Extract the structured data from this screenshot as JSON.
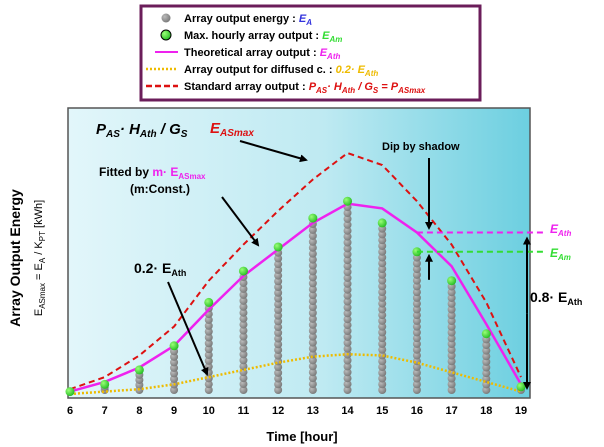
{
  "colors": {
    "gray": "#888888",
    "green": "#33dd33",
    "magenta": "#ee22ee",
    "red": "#dd1111",
    "orange": "#eebb00",
    "legend_border": "#6b1d5a",
    "plot_border": "#555555"
  },
  "legend": {
    "items": [
      {
        "kind": "gray-dot",
        "label": "Array output energy : ",
        "sym": "E",
        "sub": "A",
        "sym_color": "#3333dd"
      },
      {
        "kind": "green-dot",
        "label": "Max. hourly array output : ",
        "sym": "E",
        "sub": "Am",
        "sym_color": "#33dd33"
      },
      {
        "kind": "magenta-line",
        "label": "Theoretical array output : ",
        "sym": "E",
        "sub": "Ath",
        "sym_color": "#ee22ee"
      },
      {
        "kind": "orange-dots",
        "label": "Array output for diffused c. : ",
        "sym": "0.2· E",
        "sub": "Ath",
        "sym_color": "#eebb00"
      },
      {
        "kind": "red-dash",
        "label": "Standard array output : ",
        "sym": "P",
        "sub": "AS",
        "tail": "· H",
        "tail_sub": "Ath",
        "tail2": " / G",
        "tail2_sub": "S",
        "tail3": " = P",
        "tail3_sub": "ASmax",
        "sym_color": "#dd1111"
      }
    ]
  },
  "axes": {
    "xlabel": "Time [hour]",
    "ylabel_main": "Array Output Energy",
    "ylabel_formula_a": "E",
    "ylabel_formula_a_sub": "ASmax",
    "ylabel_formula_b": " = E",
    "ylabel_formula_b_sub": "A",
    "ylabel_formula_c": " / K",
    "ylabel_formula_c_sub": "PT",
    "ylabel_formula_d": "  [kWh]"
  },
  "annotations": {
    "pas_a": "P",
    "pas_a_sub": "AS",
    "pas_b": "· H",
    "pas_b_sub": "Ath",
    "pas_c": " / G",
    "pas_c_sub": "S",
    "easmax": "E",
    "easmax_sub": "ASmax",
    "fitted_a": "Fitted by ",
    "fitted_b": "m· E",
    "fitted_b_sub": "ASmax",
    "fitted_c": "(m:Const.)",
    "dip": "Dip by shadow",
    "point2_a": "0.2· E",
    "point2_sub": "Ath",
    "eath_r": "E",
    "eath_r_sub": "Ath",
    "eam_r": "E",
    "eam_r_sub": "Am",
    "point8_a": "0.8· E",
    "point8_sub": "Ath"
  },
  "chart_data": {
    "type": "scatter",
    "x_ticks": [
      6,
      7,
      8,
      9,
      10,
      11,
      12,
      13,
      14,
      15,
      16,
      17,
      18,
      19
    ],
    "xlim": [
      6,
      19
    ],
    "ylim": [
      0,
      1.0
    ],
    "series": [
      {
        "name": "Standard array output",
        "style": "red-dash",
        "x": [
          6,
          7,
          8,
          9,
          10,
          11,
          12,
          13,
          14,
          15,
          16,
          17,
          18,
          19
        ],
        "y": [
          0.02,
          0.07,
          0.16,
          0.28,
          0.47,
          0.62,
          0.76,
          0.89,
          1.0,
          0.95,
          0.8,
          0.62,
          0.38,
          0.07
        ]
      },
      {
        "name": "Theoretical array output",
        "style": "magenta-line",
        "x": [
          6,
          7,
          8,
          9,
          10,
          11,
          12,
          13,
          14,
          15,
          16,
          17,
          18,
          19
        ],
        "y": [
          0.01,
          0.05,
          0.11,
          0.2,
          0.35,
          0.49,
          0.6,
          0.71,
          0.79,
          0.77,
          0.67,
          0.53,
          0.29,
          0.04
        ]
      },
      {
        "name": "Array output for diffused c.",
        "style": "orange-dots",
        "x": [
          6,
          7,
          8,
          9,
          10,
          11,
          12,
          13,
          14,
          15,
          16,
          17,
          18,
          19
        ],
        "y": [
          0.0,
          0.01,
          0.02,
          0.04,
          0.07,
          0.1,
          0.13,
          0.155,
          0.165,
          0.16,
          0.13,
          0.09,
          0.05,
          0.01
        ]
      },
      {
        "name": "Max. hourly array output",
        "style": "green-dot",
        "x": [
          6,
          7,
          8,
          9,
          10,
          11,
          12,
          13,
          14,
          15,
          16,
          17,
          18,
          19
        ],
        "y": [
          0.01,
          0.04,
          0.1,
          0.2,
          0.38,
          0.51,
          0.61,
          0.73,
          0.8,
          0.71,
          0.59,
          0.47,
          0.25,
          0.03
        ]
      },
      {
        "name": "Array output energy",
        "style": "gray-column",
        "x": [
          6,
          7,
          8,
          9,
          10,
          11,
          12,
          13,
          14,
          15,
          16,
          17,
          18,
          19
        ],
        "ymin": [
          0.0,
          0.0,
          0.0,
          0.0,
          0.0,
          0.0,
          0.0,
          0.0,
          0.0,
          0.0,
          0.0,
          0.0,
          0.0,
          0.0
        ],
        "ymax": [
          0.01,
          0.04,
          0.1,
          0.2,
          0.38,
          0.51,
          0.61,
          0.73,
          0.8,
          0.71,
          0.59,
          0.47,
          0.25,
          0.03
        ]
      }
    ],
    "reference_levels": [
      {
        "label": "E_Ath",
        "y": 0.67
      },
      {
        "label": "E_Am",
        "y": 0.59
      }
    ]
  }
}
